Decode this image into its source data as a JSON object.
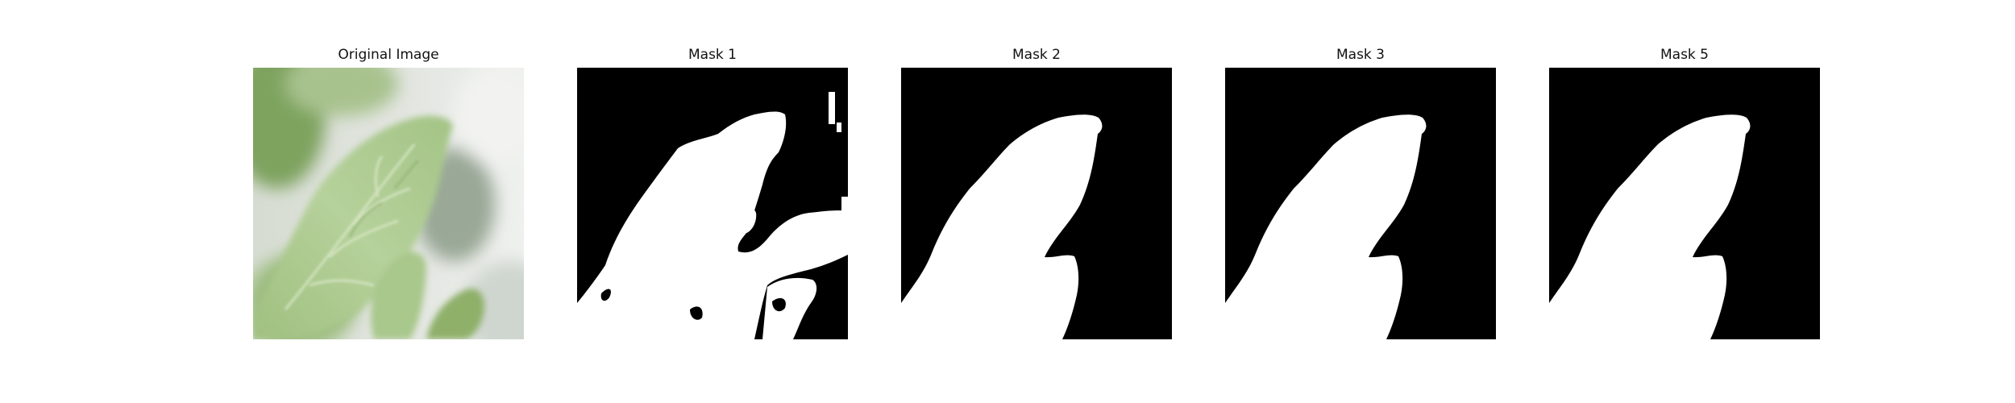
{
  "figure": {
    "panels": [
      {
        "title": "Original Image"
      },
      {
        "title": "Mask 1"
      },
      {
        "title": "Mask 2"
      },
      {
        "title": "Mask 3"
      },
      {
        "title": "Mask 5"
      }
    ]
  },
  "colors": {
    "mask_background": "#000000",
    "mask_foreground": "#ffffff",
    "leaf_light": "#b9d3a0",
    "leaf_mid": "#8fb46d",
    "leaf_dark": "#5f8d45",
    "blur_gray": "#d8dcd8"
  }
}
